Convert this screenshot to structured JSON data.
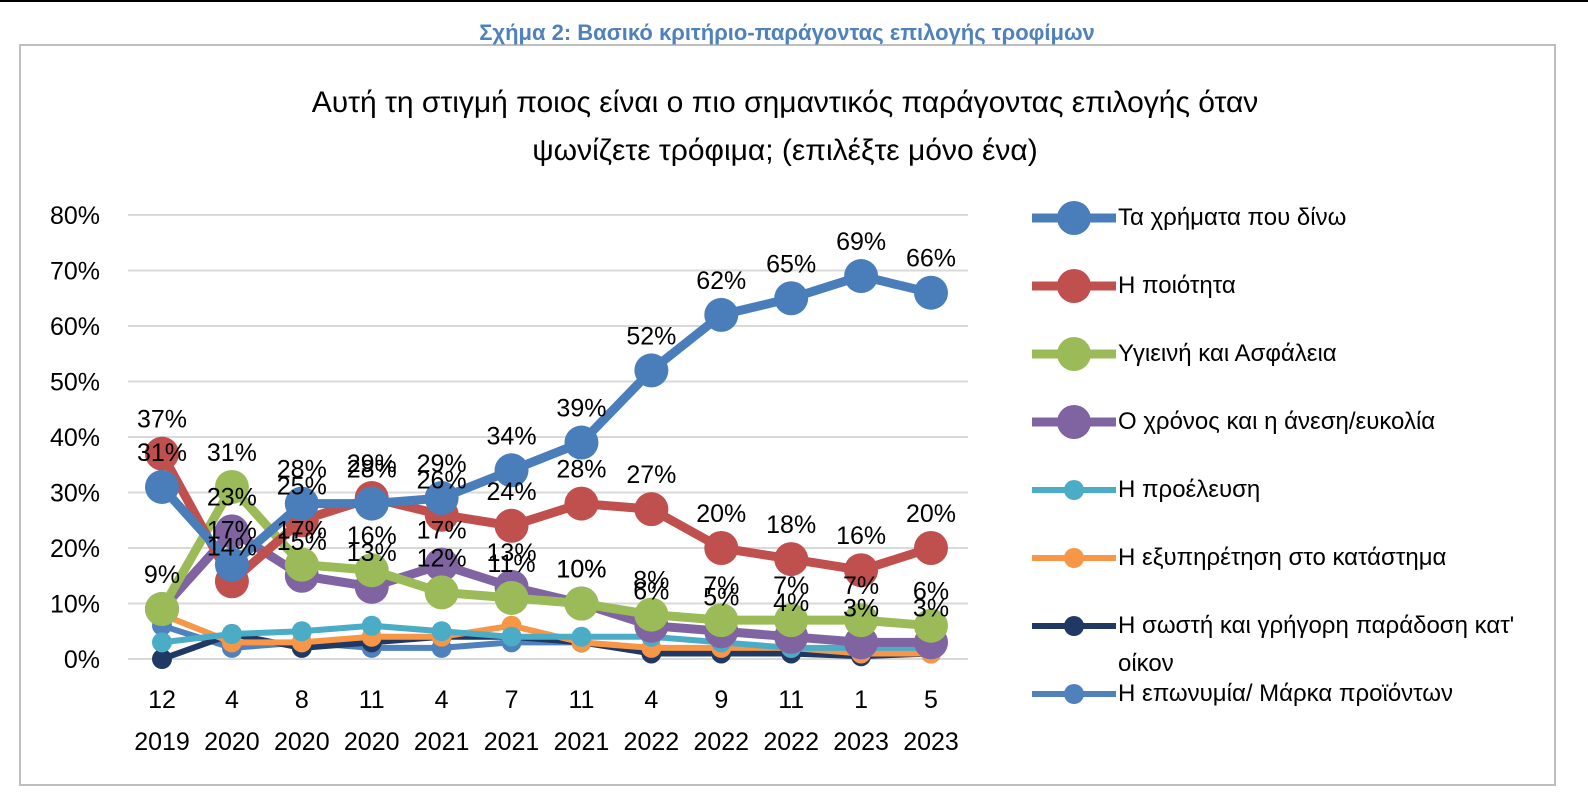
{
  "header": {
    "title": "Σχήμα 2: Βασικό κριτήριο-παράγοντας επιλογής τροφίμων"
  },
  "chart_data": {
    "type": "line",
    "title": [
      "Αυτή τη στιγμή ποιος είναι ο πιο σημαντικός παράγοντας επιλογής όταν",
      "ψωνίζετε τρόφιμα; (επιλέξτε μόνο ένα)"
    ],
    "categories": [
      [
        "12",
        "2019"
      ],
      [
        "4",
        "2020"
      ],
      [
        "8",
        "2020"
      ],
      [
        "11",
        "2020"
      ],
      [
        "4",
        "2021"
      ],
      [
        "7",
        "2021"
      ],
      [
        "11",
        "2021"
      ],
      [
        "4",
        "2022"
      ],
      [
        "9",
        "2022"
      ],
      [
        "11",
        "2022"
      ],
      [
        "1",
        "2023"
      ],
      [
        "5",
        "2023"
      ]
    ],
    "ylim": [
      0,
      80
    ],
    "yticks": [
      {
        "value": 0,
        "label": "0%"
      },
      {
        "value": 10,
        "label": "10%"
      },
      {
        "value": 20,
        "label": "20%"
      },
      {
        "value": 30,
        "label": "30%"
      },
      {
        "value": 40,
        "label": "40%"
      },
      {
        "value": 50,
        "label": "50%"
      },
      {
        "value": 60,
        "label": "60%"
      },
      {
        "value": 70,
        "label": "70%"
      },
      {
        "value": 80,
        "label": "80%"
      }
    ],
    "grid": true,
    "legend": "right",
    "series": [
      {
        "name": "Τα χρήματα που δίνω",
        "color": "#4a7ebb",
        "size": "large",
        "values": [
          31,
          17,
          28,
          28,
          29,
          34,
          39,
          52,
          62,
          65,
          69,
          66
        ],
        "value_labels": [
          "31%",
          "17%",
          "28%",
          "28%",
          "29%",
          "34%",
          "39%",
          "52%",
          "62%",
          "65%",
          "69%",
          "66%"
        ]
      },
      {
        "name": "Η ποιότητα",
        "color": "#c0504d",
        "size": "large",
        "values": [
          37,
          14,
          25,
          29,
          26,
          24,
          28,
          27,
          20,
          18,
          16,
          20
        ],
        "value_labels": [
          "37%",
          "14%",
          "25%",
          "29%",
          "26%",
          "24%",
          "28%",
          "27%",
          "20%",
          "18%",
          "16%",
          "20%"
        ]
      },
      {
        "name": "Υγιεινή και Ασφάλεια",
        "color": "#9bbb59",
        "size": "large",
        "values": [
          9,
          31,
          17,
          16,
          12,
          11,
          10,
          8,
          7,
          7,
          7,
          6
        ],
        "value_labels": [
          "9%",
          "31%",
          "17%",
          "16%",
          "12%",
          "11%",
          "10%",
          "8%",
          "7%",
          "7%",
          "7%",
          "6%"
        ]
      },
      {
        "name": "Ο χρόνος και η άνεση/ευκολία",
        "color": "#8064a2",
        "size": "large",
        "values": [
          9,
          23,
          15,
          13,
          17,
          13,
          10,
          6,
          5,
          4,
          3,
          3
        ],
        "value_labels": [
          null,
          "23%",
          "15%",
          "13%",
          "17%",
          "13%",
          "10%",
          "6%",
          "5%",
          "4%",
          "3%",
          "3%"
        ]
      },
      {
        "name": "Η προέλευση",
        "color": "#4bacc6",
        "size": "small",
        "values": [
          3,
          4.5,
          5,
          6,
          5,
          4,
          4,
          4,
          3,
          2,
          2,
          2
        ]
      },
      {
        "name": "Η εξυπηρέτηση στο κατάστημα",
        "color": "#f79646",
        "size": "small",
        "values": [
          8,
          3,
          3,
          4,
          4,
          6,
          3,
          2,
          2,
          2,
          1,
          1
        ]
      },
      {
        "name": "Η σωστή και γρήγορη παράδοση κατ' οίκον",
        "color": "#1f3864",
        "size": "small",
        "values": [
          0,
          4.5,
          2,
          3,
          4,
          4,
          3,
          1,
          1,
          1,
          0.5,
          1
        ]
      },
      {
        "name": "Η επωνυμία/ Μάρκα προϊόντων",
        "color": "#4f81bd",
        "size": "small",
        "values": [
          6,
          2,
          3,
          2,
          2,
          3,
          3,
          1.5,
          1.5,
          1.5,
          1.5,
          1.5
        ]
      }
    ]
  }
}
